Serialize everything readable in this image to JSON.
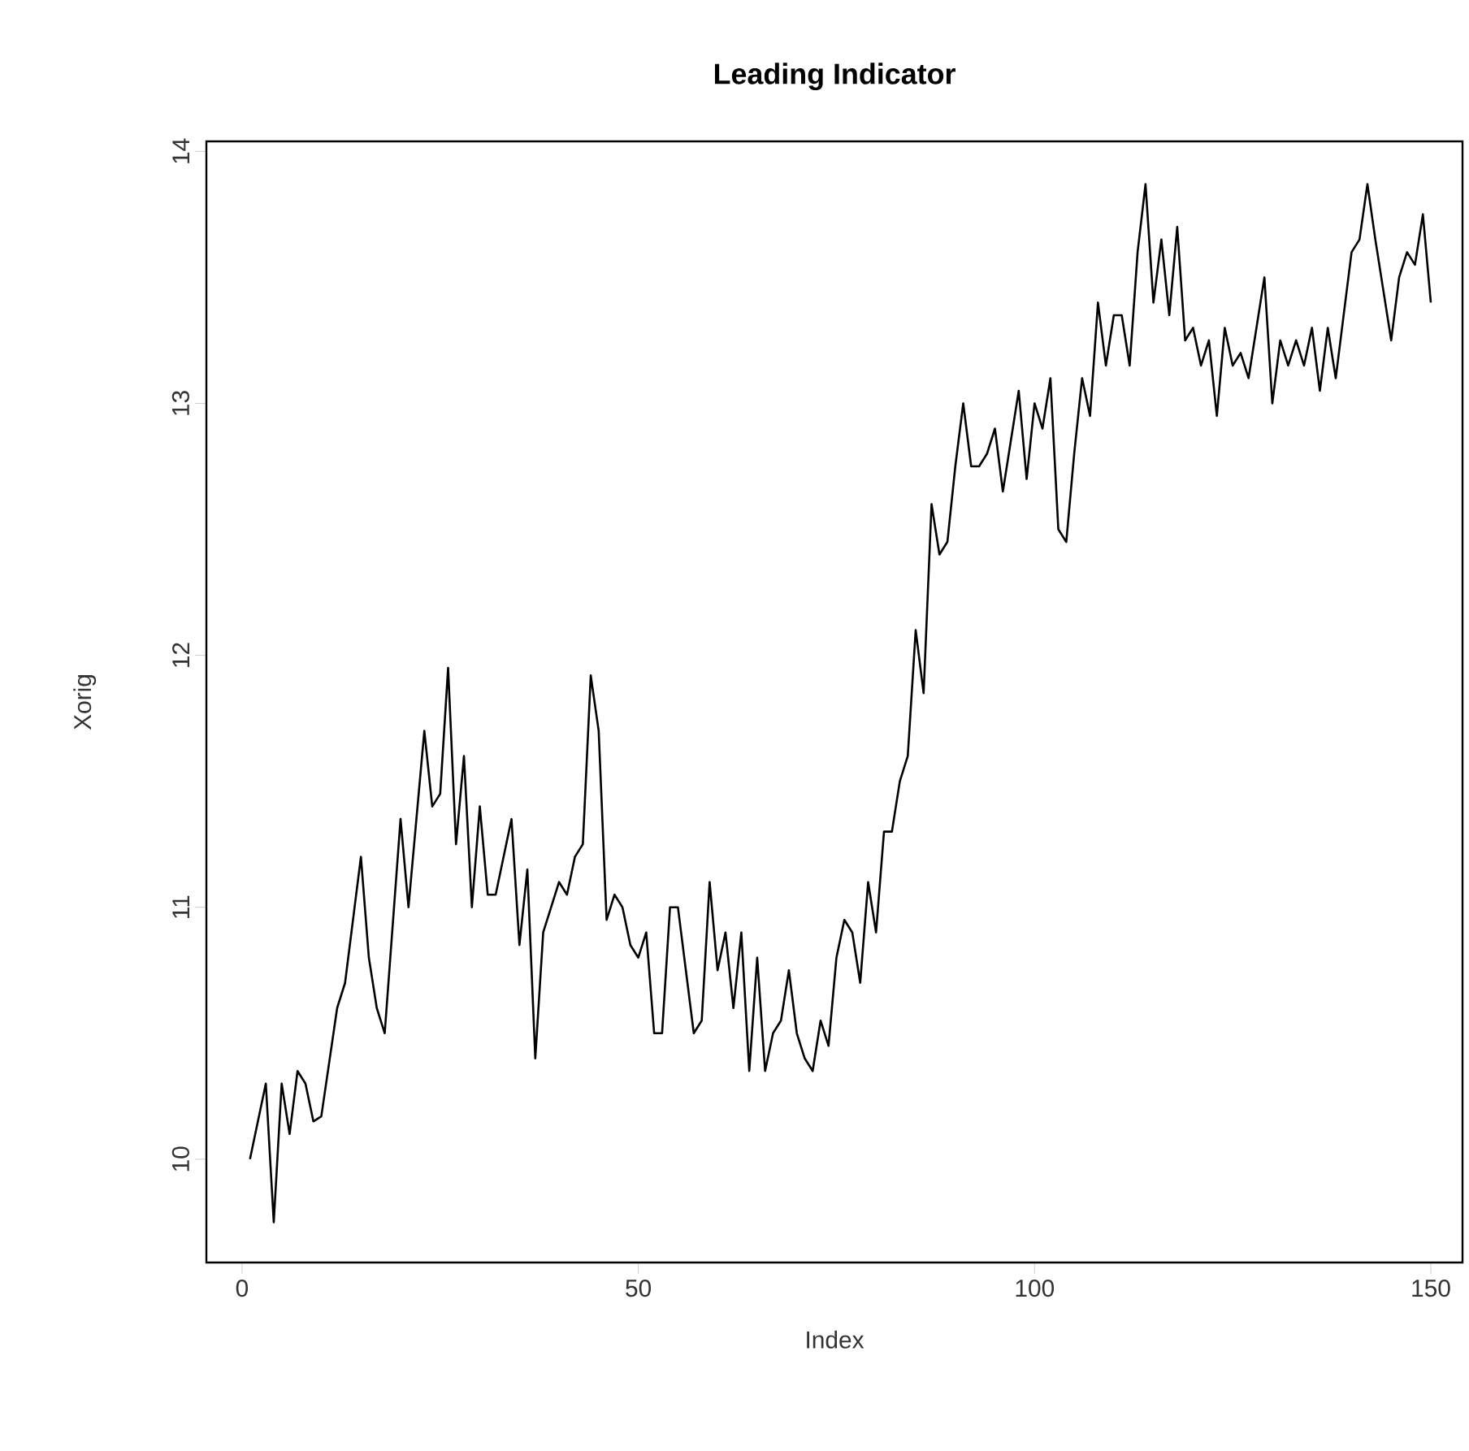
{
  "chart_data": {
    "type": "line",
    "title": "Leading Indicator",
    "xlabel": "Index",
    "ylabel": "Xorig",
    "x": [
      1,
      3,
      4,
      5,
      6,
      7,
      8,
      9,
      10,
      12,
      13,
      15,
      16,
      17,
      18,
      20,
      21,
      22,
      23,
      24,
      25,
      26,
      27,
      28,
      29,
      30,
      31,
      32,
      34,
      35,
      36,
      37,
      38,
      40,
      41,
      42,
      43,
      44,
      45,
      46,
      47,
      48,
      49,
      50,
      51,
      52,
      53,
      54,
      55,
      56,
      57,
      58,
      59,
      60,
      61,
      62,
      63,
      64,
      65,
      66,
      67,
      68,
      69,
      70,
      71,
      72,
      73,
      74,
      75,
      76,
      77,
      78,
      79,
      80,
      81,
      82,
      83,
      84,
      85,
      86,
      87,
      88,
      89,
      90,
      91,
      92,
      93,
      94,
      95,
      96,
      97,
      98,
      99,
      100,
      101,
      102,
      103,
      104,
      105,
      106,
      107,
      108,
      109,
      110,
      111,
      112,
      113,
      114,
      115,
      116,
      117,
      118,
      119,
      120,
      121,
      122,
      123,
      124,
      125,
      126,
      127,
      128,
      129,
      130,
      131,
      132,
      133,
      134,
      135,
      136,
      137,
      138,
      139,
      140,
      141,
      142,
      143,
      144,
      145,
      146,
      147,
      148,
      149,
      150
    ],
    "series": [
      {
        "color": "#000000",
        "values": [
          10.0,
          10.3,
          9.75,
          10.3,
          10.1,
          10.35,
          10.3,
          10.15,
          10.17,
          10.6,
          10.7,
          11.2,
          10.8,
          10.6,
          10.5,
          11.35,
          11.0,
          11.35,
          11.7,
          11.4,
          11.45,
          11.95,
          11.25,
          11.6,
          11.0,
          11.4,
          11.05,
          11.05,
          11.35,
          10.85,
          11.15,
          10.4,
          10.9,
          11.1,
          11.05,
          11.2,
          11.25,
          11.92,
          11.7,
          10.95,
          11.05,
          11.0,
          10.85,
          10.8,
          10.9,
          10.5,
          10.5,
          11.0,
          11.0,
          10.75,
          10.5,
          10.55,
          11.1,
          10.75,
          10.9,
          10.6,
          10.9,
          10.35,
          10.8,
          10.35,
          10.5,
          10.55,
          10.75,
          10.5,
          10.4,
          10.35,
          10.55,
          10.45,
          10.8,
          10.95,
          10.9,
          10.7,
          11.1,
          10.9,
          11.3,
          11.3,
          11.5,
          11.6,
          12.1,
          11.85,
          12.6,
          12.4,
          12.45,
          12.75,
          13.0,
          12.75,
          12.75,
          12.8,
          12.9,
          12.65,
          12.85,
          13.05,
          12.7,
          13.0,
          12.9,
          13.1,
          12.5,
          12.45,
          12.8,
          13.1,
          12.95,
          13.4,
          13.15,
          13.35,
          13.35,
          13.15,
          13.6,
          13.87,
          13.4,
          13.65,
          13.35,
          13.7,
          13.25,
          13.3,
          13.15,
          13.25,
          12.95,
          13.3,
          13.15,
          13.2,
          13.1,
          13.3,
          13.5,
          13.0,
          13.25,
          13.15,
          13.25,
          13.15,
          13.3,
          13.05,
          13.3,
          13.1,
          13.35,
          13.6,
          13.65,
          13.87,
          13.65,
          13.45,
          13.25,
          13.5,
          13.6,
          13.55,
          13.75,
          13.4
        ]
      }
    ],
    "xlim": [
      -4.5,
      154
    ],
    "ylim": [
      9.59,
      14.04
    ],
    "xticks": [
      0,
      50,
      100,
      150
    ],
    "yticks": [
      10,
      11,
      12,
      13,
      14
    ],
    "grid": false,
    "marker": "none",
    "line_style": "solid"
  }
}
